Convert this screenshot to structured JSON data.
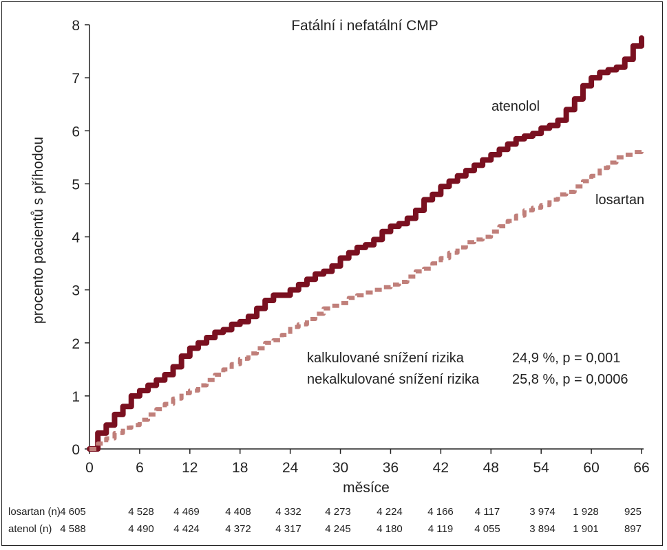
{
  "chart_data": {
    "type": "line",
    "title": "Fatální i nefatální CMP",
    "xlabel": "měsíce",
    "ylabel": "procento pacientů s příhodou",
    "xlim": [
      0,
      66
    ],
    "ylim": [
      0,
      8
    ],
    "x_ticks": [
      "0",
      "6",
      "12",
      "18",
      "24",
      "30",
      "36",
      "42",
      "48",
      "54",
      "60",
      "66"
    ],
    "y_ticks": [
      "0",
      "1",
      "2",
      "3",
      "4",
      "5",
      "6",
      "7",
      "8"
    ],
    "grid": false,
    "series": [
      {
        "name": "atenolol",
        "color": "#7a1020",
        "style": "solid",
        "x": [
          0,
          1,
          2,
          3,
          4,
          5,
          6,
          7,
          8,
          9,
          10,
          11,
          12,
          13,
          14,
          15,
          16,
          17,
          18,
          19,
          20,
          21,
          22,
          23,
          24,
          25,
          26,
          27,
          28,
          29,
          30,
          31,
          32,
          33,
          34,
          35,
          36,
          37,
          38,
          39,
          40,
          41,
          42,
          43,
          44,
          45,
          46,
          47,
          48,
          49,
          50,
          51,
          52,
          53,
          54,
          55,
          56,
          57,
          58,
          59,
          60,
          61,
          62,
          63,
          64,
          65,
          66
        ],
        "y": [
          0,
          0.3,
          0.45,
          0.65,
          0.8,
          1.0,
          1.1,
          1.2,
          1.3,
          1.4,
          1.55,
          1.75,
          1.9,
          2.0,
          2.1,
          2.2,
          2.25,
          2.35,
          2.4,
          2.5,
          2.65,
          2.8,
          2.9,
          2.9,
          3.0,
          3.1,
          3.2,
          3.3,
          3.35,
          3.45,
          3.6,
          3.7,
          3.8,
          3.85,
          3.95,
          4.1,
          4.2,
          4.25,
          4.35,
          4.5,
          4.7,
          4.8,
          4.95,
          5.05,
          5.15,
          5.25,
          5.35,
          5.45,
          5.55,
          5.65,
          5.75,
          5.85,
          5.9,
          5.95,
          6.05,
          6.1,
          6.2,
          6.4,
          6.6,
          6.85,
          7.0,
          7.1,
          7.15,
          7.2,
          7.35,
          7.6,
          7.75
        ]
      },
      {
        "name": "losartan",
        "color": "#c07f7a",
        "style": "dashed",
        "x": [
          0,
          1,
          2,
          3,
          4,
          5,
          6,
          7,
          8,
          9,
          10,
          11,
          12,
          13,
          14,
          15,
          16,
          17,
          18,
          19,
          20,
          21,
          22,
          23,
          24,
          25,
          26,
          27,
          28,
          29,
          30,
          31,
          32,
          33,
          34,
          35,
          36,
          37,
          38,
          39,
          40,
          41,
          42,
          43,
          44,
          45,
          46,
          47,
          48,
          49,
          50,
          51,
          52,
          53,
          54,
          55,
          56,
          57,
          58,
          59,
          60,
          61,
          62,
          63,
          64,
          65,
          66
        ],
        "y": [
          0,
          0.1,
          0.2,
          0.3,
          0.4,
          0.45,
          0.55,
          0.65,
          0.75,
          0.85,
          0.95,
          1.05,
          1.1,
          1.2,
          1.3,
          1.4,
          1.5,
          1.6,
          1.7,
          1.8,
          1.9,
          2.0,
          2.05,
          2.15,
          2.3,
          2.35,
          2.45,
          2.55,
          2.65,
          2.7,
          2.75,
          2.85,
          2.9,
          2.95,
          3.0,
          3.05,
          3.1,
          3.15,
          3.25,
          3.35,
          3.4,
          3.5,
          3.6,
          3.7,
          3.8,
          3.9,
          3.95,
          4.0,
          4.1,
          4.2,
          4.3,
          4.4,
          4.5,
          4.55,
          4.6,
          4.7,
          4.8,
          4.85,
          4.95,
          5.05,
          5.15,
          5.3,
          5.4,
          5.5,
          5.55,
          5.6,
          5.65
        ]
      }
    ],
    "series_labels": {
      "atenolol": "atenolol",
      "losartan": "losartan"
    },
    "annotations": [
      {
        "left": "kalkulované snížení rizika",
        "right": "24,9 %, p = 0,001"
      },
      {
        "left": "nekalkulované snížení rizika",
        "right": "25,8 %, p = 0,0006"
      }
    ],
    "risk_table": {
      "rows": [
        {
          "label": "losartan (n)",
          "values": [
            "4 605",
            "4 528",
            "4 469",
            "4 408",
            "4 332",
            "4 273",
            "4 224",
            "4 166",
            "4 117",
            "3 974",
            "1 928",
            "925"
          ]
        },
        {
          "label": "atenol (n)",
          "values": [
            "4 588",
            "4 490",
            "4 424",
            "4 372",
            "4 317",
            "4 245",
            "4 180",
            "4 119",
            "4 055",
            "3 894",
            "1 901",
            "897"
          ]
        }
      ]
    }
  }
}
